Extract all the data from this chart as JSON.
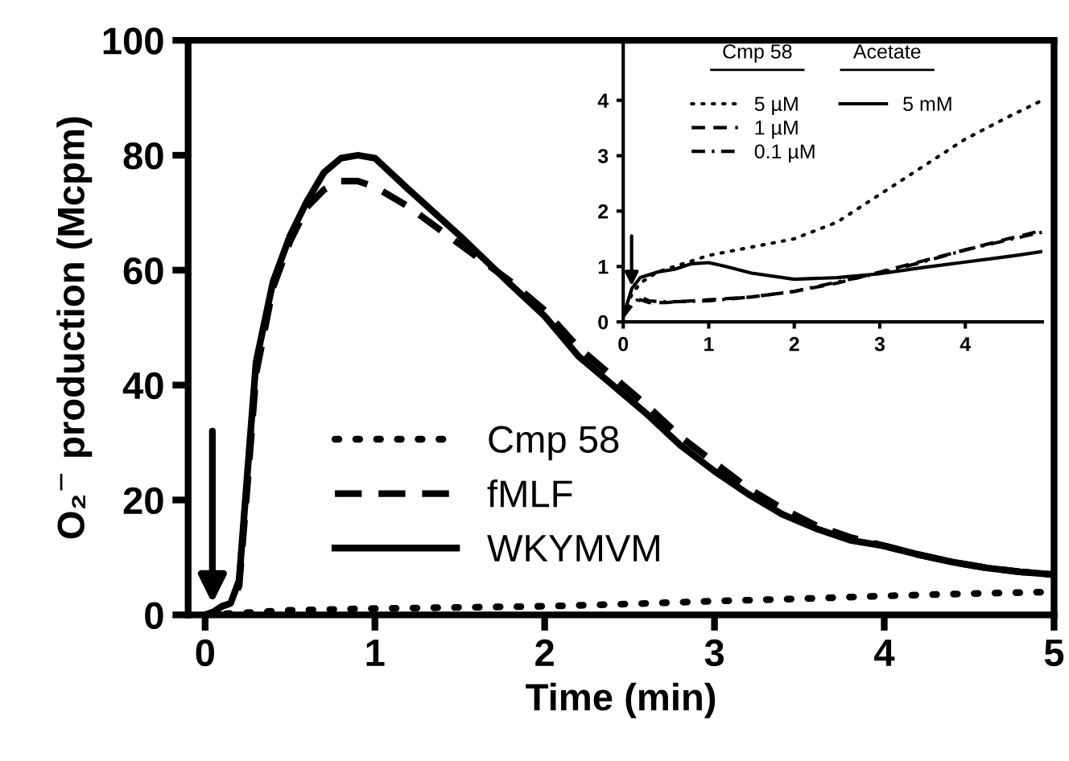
{
  "chart_data": [
    {
      "type": "line",
      "xlabel": "Time (min)",
      "ylabel": "O₂$^{−}$ production (Mcpm)",
      "xlim": [
        -0.1,
        5
      ],
      "ylim": [
        0,
        100
      ],
      "xticks": [
        0,
        1,
        2,
        3,
        4,
        5
      ],
      "yticks": [
        0,
        20,
        40,
        60,
        80,
        100
      ],
      "legend": "bottom left",
      "grid": false,
      "marker": "none",
      "series": [
        {
          "name": "Cmp 58",
          "color": "#000000",
          "line_style": "dotted",
          "x": [
            0,
            0.5,
            1,
            1.5,
            2,
            2.5,
            3,
            3.5,
            4,
            4.5,
            5
          ],
          "values": [
            0,
            0.8,
            1.1,
            1.3,
            1.5,
            1.9,
            2.4,
            2.8,
            3.3,
            3.7,
            4.0
          ]
        },
        {
          "name": "fMLF",
          "color": "#000000",
          "line_style": "dashed",
          "x": [
            0,
            0.05,
            0.1,
            0.15,
            0.2,
            0.25,
            0.3,
            0.4,
            0.5,
            0.6,
            0.7,
            0.8,
            0.9,
            1.0,
            1.2,
            1.5,
            1.8,
            2.0,
            2.2,
            2.4,
            2.6,
            2.8,
            3.0,
            3.2,
            3.4,
            3.6,
            3.8,
            4.0,
            4.2,
            4.4,
            4.6,
            4.8,
            5.0
          ],
          "values": [
            0,
            0.5,
            1.5,
            2,
            5,
            23,
            42,
            57,
            65,
            71,
            74,
            75.5,
            75.5,
            74.5,
            71,
            64.5,
            58,
            53,
            46.5,
            41.5,
            36.5,
            31,
            26.5,
            22,
            18.5,
            15.5,
            13.5,
            12,
            10.5,
            9.2,
            8.2,
            7.5,
            7
          ]
        },
        {
          "name": "WKYMVM",
          "color": "#000000",
          "line_style": "solid",
          "x": [
            0,
            0.05,
            0.1,
            0.15,
            0.2,
            0.25,
            0.3,
            0.4,
            0.5,
            0.6,
            0.7,
            0.8,
            0.9,
            1.0,
            1.2,
            1.5,
            1.8,
            2.0,
            2.2,
            2.4,
            2.6,
            2.8,
            3.0,
            3.2,
            3.4,
            3.6,
            3.8,
            4.0,
            4.2,
            4.4,
            4.6,
            4.8,
            5.0
          ],
          "values": [
            0,
            0.5,
            1.5,
            2,
            6,
            25,
            44,
            58,
            66,
            72,
            77,
            79.5,
            80,
            79.5,
            74,
            66,
            57.5,
            52,
            45,
            40,
            35,
            29.5,
            25,
            21,
            17.5,
            15,
            13,
            12,
            10.5,
            9.2,
            8.2,
            7.5,
            7
          ]
        }
      ]
    },
    {
      "type": "line",
      "xlim": [
        0,
        4.9
      ],
      "ylim": [
        0,
        5
      ],
      "xticks": [
        0,
        1,
        2,
        3,
        4
      ],
      "yticks": [
        0,
        1,
        2,
        3,
        4
      ],
      "legend": "top left",
      "grid": false,
      "marker": "none",
      "annotations": [
        "Cmp 58",
        "Acetate"
      ],
      "series": [
        {
          "name": "5 µM",
          "color": "#000000",
          "line_style": "dotted",
          "x": [
            0,
            0.1,
            0.2,
            0.4,
            0.6,
            0.8,
            1.0,
            1.5,
            2,
            2.5,
            3,
            3.5,
            4,
            4.5,
            4.9
          ],
          "values": [
            0.1,
            0.5,
            0.7,
            0.9,
            1.0,
            1.1,
            1.2,
            1.35,
            1.5,
            1.8,
            2.3,
            2.8,
            3.3,
            3.7,
            4.0
          ]
        },
        {
          "name": "1 µM",
          "color": "#000000",
          "line_style": "dashed",
          "x": [
            0,
            0.1,
            0.2,
            0.3,
            0.5,
            1,
            1.5,
            2,
            2.5,
            3,
            3.5,
            4,
            4.5,
            4.9
          ],
          "values": [
            0.1,
            0.3,
            0.4,
            0.35,
            0.35,
            0.4,
            0.45,
            0.55,
            0.7,
            0.9,
            1.1,
            1.3,
            1.5,
            1.65
          ]
        },
        {
          "name": "0.1 µM",
          "color": "#000000",
          "line_style": "dashdot",
          "x": [
            0,
            0.1,
            0.2,
            0.3,
            0.5,
            1,
            1.5,
            2,
            2.5,
            3,
            3.5,
            4,
            4.5,
            4.9
          ],
          "values": [
            0.1,
            0.3,
            0.45,
            0.38,
            0.36,
            0.38,
            0.45,
            0.55,
            0.72,
            0.88,
            1.08,
            1.3,
            1.48,
            1.62
          ]
        },
        {
          "name": "5 mM",
          "color": "#000000",
          "line_style": "solid",
          "x": [
            0,
            0.1,
            0.2,
            0.4,
            0.6,
            0.8,
            1.0,
            1.2,
            1.5,
            2,
            2.5,
            3,
            3.5,
            4,
            4.5,
            4.9
          ],
          "values": [
            0.1,
            0.6,
            0.8,
            0.9,
            0.95,
            1.05,
            1.07,
            1.0,
            0.88,
            0.77,
            0.8,
            0.87,
            0.98,
            1.08,
            1.18,
            1.27
          ]
        }
      ]
    }
  ]
}
